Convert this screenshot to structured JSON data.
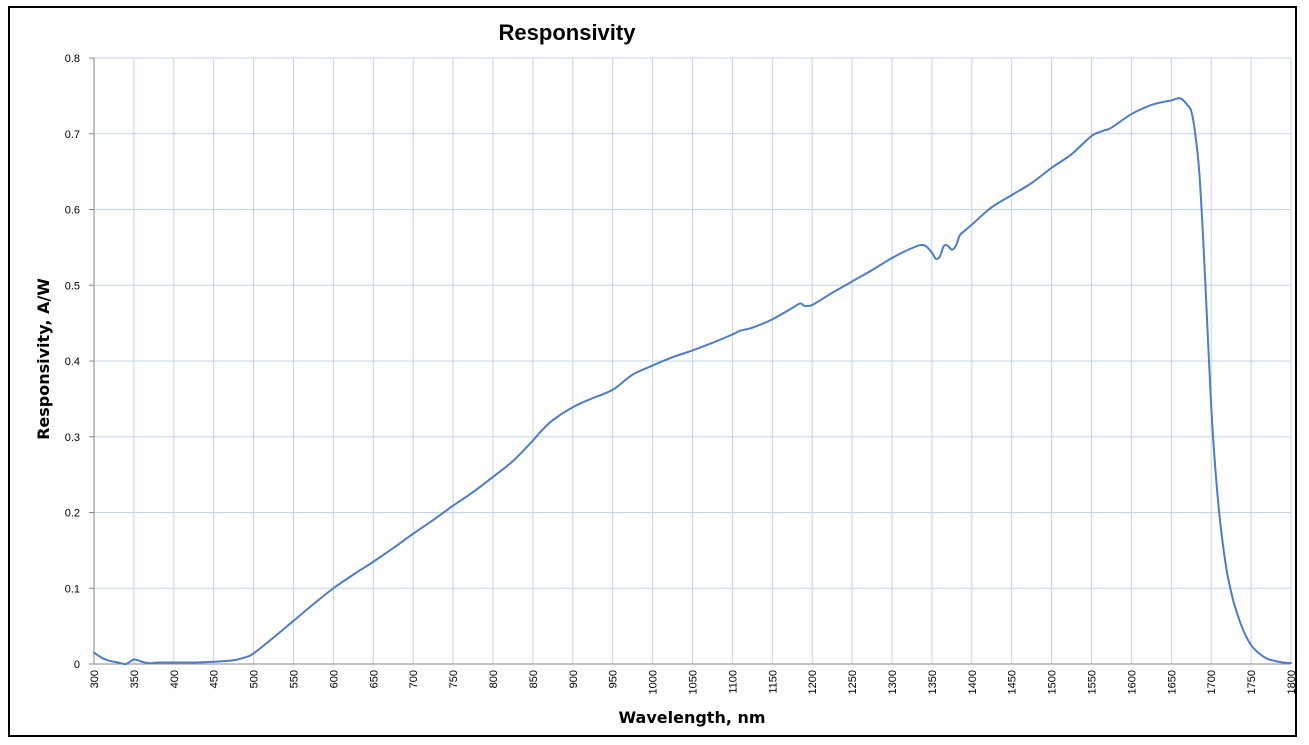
{
  "chart_data": {
    "type": "line",
    "title": "Responsivity",
    "xlabel": "Wavelength, nm",
    "ylabel": "Responsivity, A/W",
    "xlim": [
      300,
      1800
    ],
    "ylim": [
      0,
      0.8
    ],
    "x_ticks": [
      "300",
      "350",
      "400",
      "450",
      "500",
      "550",
      "600",
      "650",
      "700",
      "750",
      "800",
      "850",
      "900",
      "950",
      "1000",
      "1050",
      "1100",
      "1150",
      "1200",
      "1250",
      "1300",
      "1350",
      "1400",
      "1450",
      "1500",
      "1550",
      "1600",
      "1650",
      "1700",
      "1750",
      "1800"
    ],
    "y_ticks": [
      "0",
      "0.1",
      "0.2",
      "0.3",
      "0.4",
      "0.5",
      "0.6",
      "0.7",
      "0.8"
    ],
    "grid": true,
    "legend": "none",
    "colors": {
      "line": "#4f7cc9",
      "grid": "#c5d3e6",
      "axis": "#888888"
    },
    "series": [
      {
        "x": [
          300,
          310,
          320,
          330,
          340,
          350,
          360,
          370,
          380,
          390,
          400,
          425,
          450,
          475,
          490,
          500,
          525,
          550,
          575,
          600,
          625,
          650,
          675,
          700,
          725,
          750,
          775,
          800,
          825,
          850,
          860,
          875,
          900,
          925,
          950,
          975,
          1000,
          1025,
          1050,
          1075,
          1100,
          1110,
          1125,
          1150,
          1175,
          1185,
          1190,
          1200,
          1225,
          1250,
          1275,
          1300,
          1325,
          1340,
          1350,
          1355,
          1360,
          1365,
          1370,
          1375,
          1380,
          1385,
          1390,
          1400,
          1425,
          1450,
          1475,
          1500,
          1525,
          1550,
          1565,
          1575,
          1600,
          1625,
          1640,
          1650,
          1660,
          1665,
          1670,
          1675,
          1680,
          1685,
          1690,
          1695,
          1700,
          1705,
          1710,
          1715,
          1720,
          1725,
          1730,
          1740,
          1750,
          1760,
          1770,
          1780,
          1790,
          1800
        ],
        "y": [
          0.015,
          0.008,
          0.004,
          0.002,
          0.0,
          0.006,
          0.003,
          0.001,
          0.002,
          0.002,
          0.002,
          0.002,
          0.003,
          0.005,
          0.009,
          0.014,
          0.035,
          0.057,
          0.079,
          0.1,
          0.118,
          0.135,
          0.153,
          0.172,
          0.19,
          0.209,
          0.227,
          0.247,
          0.268,
          0.295,
          0.307,
          0.322,
          0.339,
          0.351,
          0.362,
          0.382,
          0.394,
          0.405,
          0.414,
          0.424,
          0.435,
          0.44,
          0.444,
          0.455,
          0.47,
          0.476,
          0.473,
          0.474,
          0.49,
          0.505,
          0.52,
          0.536,
          0.549,
          0.553,
          0.543,
          0.535,
          0.538,
          0.552,
          0.552,
          0.547,
          0.552,
          0.566,
          0.571,
          0.58,
          0.603,
          0.619,
          0.635,
          0.655,
          0.673,
          0.697,
          0.704,
          0.708,
          0.726,
          0.738,
          0.742,
          0.744,
          0.747,
          0.744,
          0.738,
          0.73,
          0.7,
          0.65,
          0.56,
          0.45,
          0.34,
          0.26,
          0.2,
          0.155,
          0.12,
          0.095,
          0.075,
          0.045,
          0.025,
          0.014,
          0.007,
          0.004,
          0.002,
          0.001
        ]
      }
    ]
  }
}
